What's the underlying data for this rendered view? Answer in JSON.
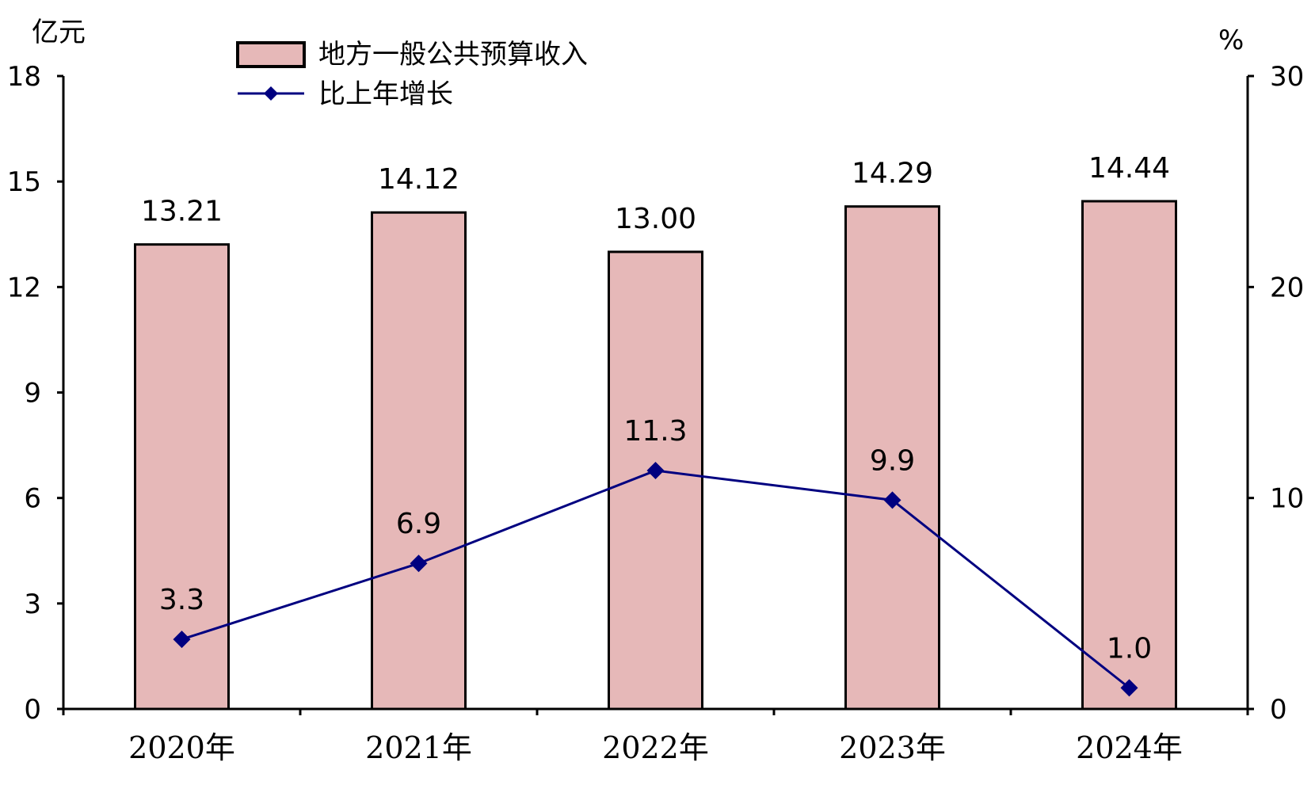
{
  "chart_data": {
    "type": "bar",
    "categories": [
      "2020年",
      "2021年",
      "2022年",
      "2023年",
      "2024年"
    ],
    "left_axis": {
      "unit": "亿元",
      "ylim": [
        0,
        18
      ],
      "ticks": [
        "0",
        "3",
        "6",
        "9",
        "12",
        "15",
        "18"
      ]
    },
    "right_axis": {
      "unit": "%",
      "ylim": [
        0,
        30
      ],
      "ticks": [
        "0",
        "10",
        "20",
        "30"
      ]
    },
    "series": [
      {
        "name": "地方一般公共预算收入",
        "type": "bar",
        "axis": "left",
        "values": [
          13.21,
          14.12,
          13.0,
          14.29,
          14.44
        ],
        "labels": [
          "13.21",
          "14.12",
          "13.00",
          "14.29",
          "14.44"
        ],
        "color": "#e6b8b8"
      },
      {
        "name": "比上年增长",
        "type": "line",
        "axis": "right",
        "values": [
          3.3,
          6.9,
          11.3,
          9.9,
          1.0
        ],
        "labels": [
          "3.3",
          "6.9",
          "11.3",
          "9.9",
          "1.0"
        ],
        "color": "#000080"
      }
    ],
    "grid": false,
    "legend_position": "top"
  }
}
